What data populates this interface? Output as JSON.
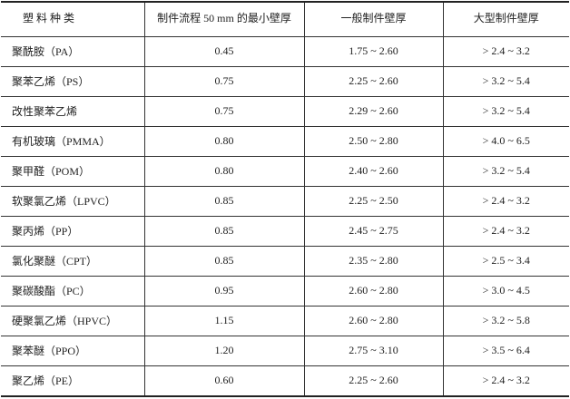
{
  "table": {
    "header": [
      "塑 料 种 类",
      "制件流程 50 mm 的最小壁厚",
      "一般制件壁厚",
      "大型制件壁厚"
    ],
    "rows": [
      [
        "聚酰胺（PA）",
        "0.45",
        "1.75 ~ 2.60",
        "> 2.4 ~ 3.2"
      ],
      [
        "聚苯乙烯（PS）",
        "0.75",
        "2.25 ~ 2.60",
        "> 3.2 ~ 5.4"
      ],
      [
        "改性聚苯乙烯",
        "0.75",
        "2.29 ~ 2.60",
        "> 3.2 ~ 5.4"
      ],
      [
        "有机玻璃（PMMA）",
        "0.80",
        "2.50 ~ 2.80",
        "> 4.0 ~ 6.5"
      ],
      [
        "聚甲醛（POM）",
        "0.80",
        "2.40 ~ 2.60",
        "> 3.2 ~ 5.4"
      ],
      [
        "软聚氯乙烯（LPVC）",
        "0.85",
        "2.25 ~ 2.50",
        "> 2.4 ~ 3.2"
      ],
      [
        "聚丙烯（PP）",
        "0.85",
        "2.45 ~ 2.75",
        "> 2.4 ~ 3.2"
      ],
      [
        "氯化聚醚（CPT）",
        "0.85",
        "2.35 ~ 2.80",
        "> 2.5 ~ 3.4"
      ],
      [
        "聚碳酸酯（PC）",
        "0.95",
        "2.60 ~ 2.80",
        "> 3.0 ~ 4.5"
      ],
      [
        "硬聚氯乙烯（HPVC）",
        "1.15",
        "2.60 ~ 2.80",
        "> 3.2 ~ 5.8"
      ],
      [
        "聚苯醚（PPO）",
        "1.20",
        "2.75 ~ 3.10",
        "> 3.5 ~ 6.4"
      ],
      [
        "聚乙烯（PE）",
        "0.60",
        "2.25 ~ 2.60",
        "> 2.4 ~ 3.2"
      ]
    ]
  }
}
